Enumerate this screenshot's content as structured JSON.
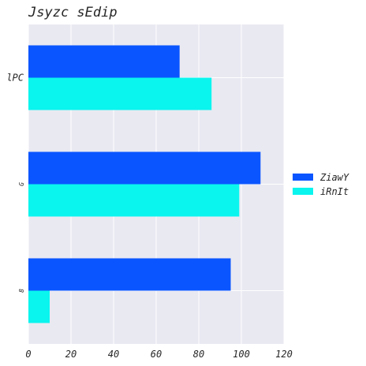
{
  "chart_data": {
    "type": "bar",
    "orientation": "horizontal",
    "title": "Jsyzc  sEdip",
    "xlabel": "",
    "ylabel": "",
    "categories": [
      "lPC",
      "G",
      "8"
    ],
    "series": [
      {
        "name": "ZiawY",
        "values": [
          71,
          109,
          95
        ],
        "color": "#0a55ff"
      },
      {
        "name": "iRnIt",
        "values": [
          86,
          99,
          10
        ],
        "color": "#0af5ee"
      }
    ],
    "xlim": [
      0,
      120
    ],
    "xticks": [
      0,
      20,
      40,
      60,
      80,
      100,
      120
    ],
    "grid": true,
    "legend_position": "right",
    "background": "#e9e9f2"
  }
}
